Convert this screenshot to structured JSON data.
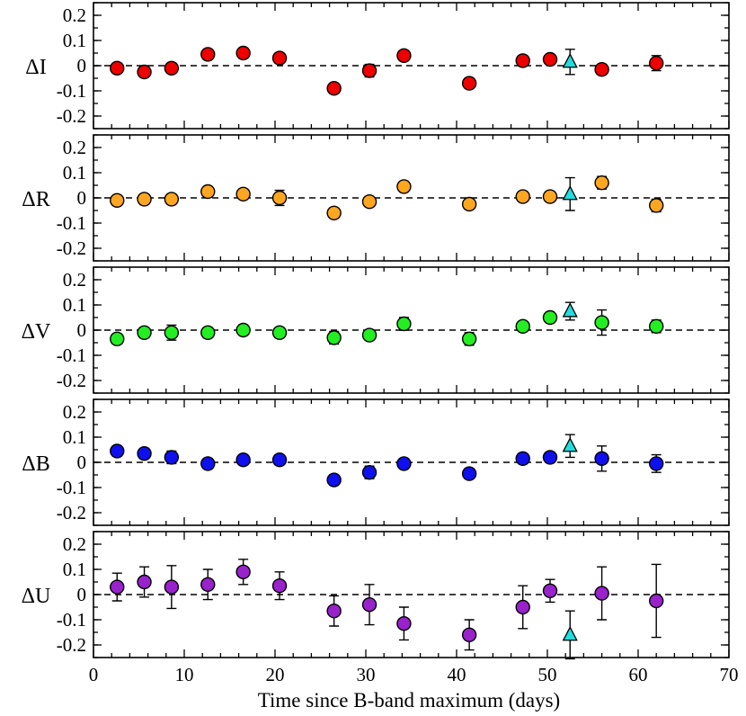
{
  "chart_data": {
    "type": "scatter",
    "xlabel": "Time since B-band maximum (days)",
    "xlim": [
      0,
      70
    ],
    "xticks": [
      0,
      10,
      20,
      30,
      40,
      50,
      60,
      70
    ],
    "xtick_labels": [
      "0",
      "10",
      "20",
      "30",
      "40",
      "50",
      "60",
      "70"
    ],
    "ylim": [
      -0.25,
      0.25
    ],
    "yticks": [
      0.2,
      0.1,
      0,
      -0.1,
      -0.2
    ],
    "ytick_labels": [
      "0.2",
      "0.1",
      "0",
      "-0.1",
      "-0.2"
    ],
    "panels": [
      {
        "name": "I",
        "ylabel": "ΔI",
        "color": "#ee0000",
        "points": [
          {
            "x": 2.6,
            "y": -0.01,
            "err": 0.02
          },
          {
            "x": 5.6,
            "y": -0.025,
            "err": 0.02
          },
          {
            "x": 8.6,
            "y": -0.01,
            "err": 0.02
          },
          {
            "x": 12.6,
            "y": 0.045,
            "err": 0.02
          },
          {
            "x": 16.5,
            "y": 0.05,
            "err": 0.02
          },
          {
            "x": 20.5,
            "y": 0.03,
            "err": 0.02
          },
          {
            "x": 26.5,
            "y": -0.09,
            "err": 0.02
          },
          {
            "x": 30.4,
            "y": -0.02,
            "err": 0.025
          },
          {
            "x": 34.2,
            "y": 0.04,
            "err": 0.02
          },
          {
            "x": 41.4,
            "y": -0.07,
            "err": 0.02
          },
          {
            "x": 47.3,
            "y": 0.02,
            "err": 0.02
          },
          {
            "x": 50.3,
            "y": 0.025,
            "err": 0.02
          },
          {
            "x": 56.0,
            "y": -0.015,
            "err": 0.02
          },
          {
            "x": 62.0,
            "y": 0.01,
            "err": 0.03
          }
        ],
        "special": {
          "x": 52.5,
          "y": 0.015,
          "err": 0.05
        }
      },
      {
        "name": "R",
        "ylabel": "ΔR",
        "color": "#ffa620",
        "points": [
          {
            "x": 2.6,
            "y": -0.01,
            "err": 0.02
          },
          {
            "x": 5.6,
            "y": -0.005,
            "err": 0.02
          },
          {
            "x": 8.6,
            "y": -0.005,
            "err": 0.02
          },
          {
            "x": 12.6,
            "y": 0.025,
            "err": 0.02
          },
          {
            "x": 16.5,
            "y": 0.015,
            "err": 0.02
          },
          {
            "x": 20.5,
            "y": 0.0,
            "err": 0.03
          },
          {
            "x": 26.5,
            "y": -0.06,
            "err": 0.02
          },
          {
            "x": 30.4,
            "y": -0.015,
            "err": 0.02
          },
          {
            "x": 34.2,
            "y": 0.045,
            "err": 0.02
          },
          {
            "x": 41.4,
            "y": -0.025,
            "err": 0.02
          },
          {
            "x": 47.3,
            "y": 0.005,
            "err": 0.02
          },
          {
            "x": 50.3,
            "y": 0.005,
            "err": 0.02
          },
          {
            "x": 56.0,
            "y": 0.06,
            "err": 0.025
          },
          {
            "x": 62.0,
            "y": -0.03,
            "err": 0.025
          }
        ],
        "special": {
          "x": 52.5,
          "y": 0.015,
          "err": 0.065
        }
      },
      {
        "name": "V",
        "ylabel": "ΔV",
        "color": "#22ee22",
        "points": [
          {
            "x": 2.6,
            "y": -0.035,
            "err": 0.02
          },
          {
            "x": 5.6,
            "y": -0.01,
            "err": 0.02
          },
          {
            "x": 8.6,
            "y": -0.01,
            "err": 0.03
          },
          {
            "x": 12.6,
            "y": -0.01,
            "err": 0.02
          },
          {
            "x": 16.5,
            "y": 0.0,
            "err": 0.02
          },
          {
            "x": 20.5,
            "y": -0.01,
            "err": 0.02
          },
          {
            "x": 26.5,
            "y": -0.03,
            "err": 0.025
          },
          {
            "x": 30.4,
            "y": -0.02,
            "err": 0.02
          },
          {
            "x": 34.2,
            "y": 0.025,
            "err": 0.025
          },
          {
            "x": 41.4,
            "y": -0.035,
            "err": 0.025
          },
          {
            "x": 47.3,
            "y": 0.015,
            "err": 0.02
          },
          {
            "x": 50.3,
            "y": 0.05,
            "err": 0.02
          },
          {
            "x": 56.0,
            "y": 0.03,
            "err": 0.05
          },
          {
            "x": 62.0,
            "y": 0.015,
            "err": 0.025
          }
        ],
        "special": {
          "x": 52.5,
          "y": 0.075,
          "err": 0.035
        }
      },
      {
        "name": "B",
        "ylabel": "ΔB",
        "color": "#1010ee",
        "points": [
          {
            "x": 2.6,
            "y": 0.045,
            "err": 0.02
          },
          {
            "x": 5.6,
            "y": 0.035,
            "err": 0.02
          },
          {
            "x": 8.6,
            "y": 0.02,
            "err": 0.025
          },
          {
            "x": 12.6,
            "y": -0.005,
            "err": 0.02
          },
          {
            "x": 16.5,
            "y": 0.01,
            "err": 0.02
          },
          {
            "x": 20.5,
            "y": 0.01,
            "err": 0.02
          },
          {
            "x": 26.5,
            "y": -0.07,
            "err": 0.02
          },
          {
            "x": 30.4,
            "y": -0.04,
            "err": 0.025
          },
          {
            "x": 34.2,
            "y": -0.005,
            "err": 0.02
          },
          {
            "x": 41.4,
            "y": -0.045,
            "err": 0.02
          },
          {
            "x": 47.3,
            "y": 0.015,
            "err": 0.02
          },
          {
            "x": 50.3,
            "y": 0.02,
            "err": 0.02
          },
          {
            "x": 56.0,
            "y": 0.015,
            "err": 0.05
          },
          {
            "x": 62.0,
            "y": -0.005,
            "err": 0.035
          }
        ],
        "special": {
          "x": 52.5,
          "y": 0.065,
          "err": 0.045
        }
      },
      {
        "name": "U",
        "ylabel": "ΔU",
        "color": "#9922cc",
        "points": [
          {
            "x": 2.6,
            "y": 0.03,
            "err": 0.055
          },
          {
            "x": 5.6,
            "y": 0.05,
            "err": 0.06
          },
          {
            "x": 8.6,
            "y": 0.03,
            "err": 0.085
          },
          {
            "x": 12.6,
            "y": 0.04,
            "err": 0.06
          },
          {
            "x": 16.5,
            "y": 0.09,
            "err": 0.05
          },
          {
            "x": 20.5,
            "y": 0.035,
            "err": 0.055
          },
          {
            "x": 26.5,
            "y": -0.065,
            "err": 0.06
          },
          {
            "x": 30.4,
            "y": -0.04,
            "err": 0.08
          },
          {
            "x": 34.2,
            "y": -0.115,
            "err": 0.065
          },
          {
            "x": 41.4,
            "y": -0.16,
            "err": 0.06
          },
          {
            "x": 47.3,
            "y": -0.05,
            "err": 0.085
          },
          {
            "x": 50.3,
            "y": 0.015,
            "err": 0.045
          },
          {
            "x": 56.0,
            "y": 0.005,
            "err": 0.105
          },
          {
            "x": 62.0,
            "y": -0.025,
            "err": 0.145
          }
        ],
        "special": {
          "x": 52.5,
          "y": -0.16,
          "err": 0.095
        }
      }
    ],
    "special_marker": {
      "shape": "triangle",
      "color": "#22dddd"
    }
  }
}
